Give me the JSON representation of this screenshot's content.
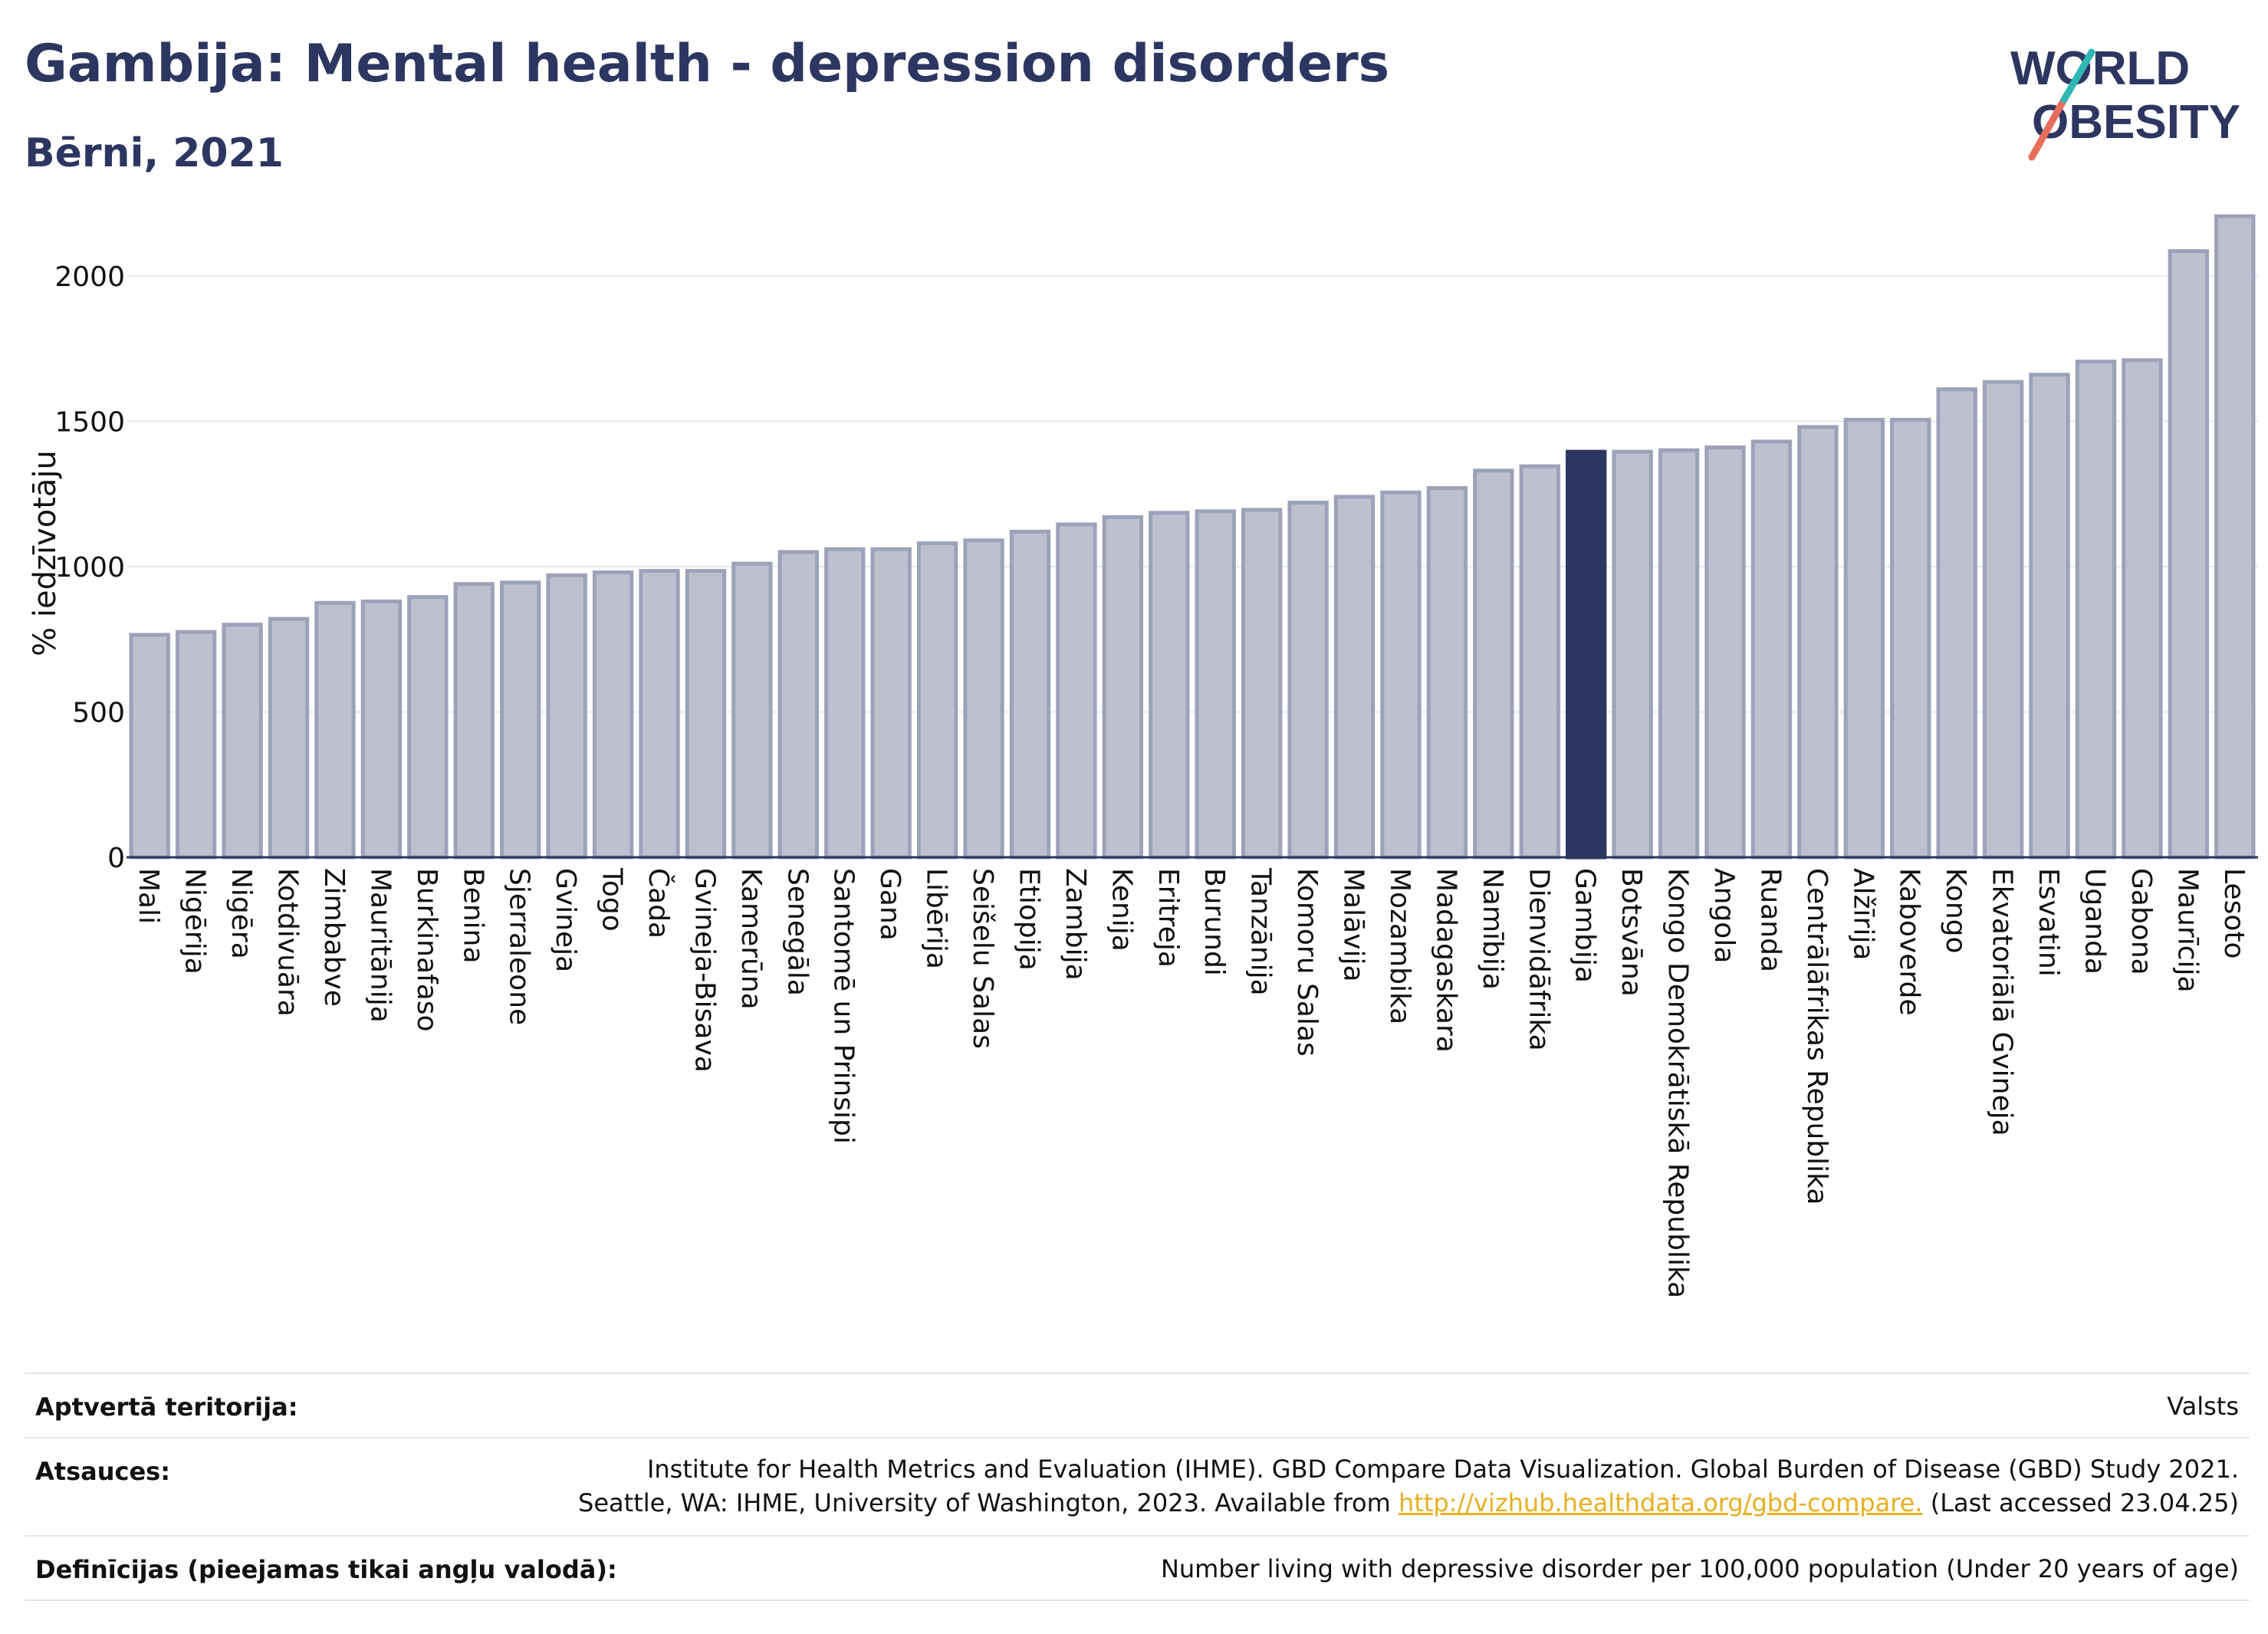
{
  "header": {
    "title": "Gambija: Mental health - depression disorders",
    "subtitle": "Bērni, 2021"
  },
  "logo": {
    "line1": "WORLD",
    "line2": "OBESITY"
  },
  "chart_data": {
    "type": "bar",
    "ylabel": "% iedzīvotāju",
    "ylim": [
      0,
      2250
    ],
    "yticks": [
      0,
      500,
      1000,
      1500,
      2000
    ],
    "grid": true,
    "highlight": "Gambija",
    "colors": {
      "bar": "#bdc1cf",
      "bar_edge": "#9da2b8",
      "highlight": "#2c3660",
      "grid": "#e6e8ec"
    },
    "categories": [
      "Mali",
      "Nigērija",
      "Nigēra",
      "Kotdivuāra",
      "Zimbabve",
      "Mauritānija",
      "Burkinafaso",
      "Benina",
      "Sjerraleone",
      "Gvineja",
      "Togo",
      "Čada",
      "Gvineja-Bisava",
      "Kamerūna",
      "Senegāla",
      "Santomē un Prinsipi",
      "Gana",
      "Libērija",
      "Seišelu Salas",
      "Etiopija",
      "Zambija",
      "Kenija",
      "Eritreja",
      "Burundi",
      "Tanzānija",
      "Komoru Salas",
      "Malāvija",
      "Mozambika",
      "Madagaskara",
      "Namībija",
      "Dienvidāfrika",
      "Gambija",
      "Botsvāna",
      "Kongo Demokrātiskā Republika",
      "Angola",
      "Ruanda",
      "Centrālāfrikas Republika",
      "Alžīrija",
      "Kaboverde",
      "Kongo",
      "Ekvatoriālā Gvineja",
      "Esvatini",
      "Uganda",
      "Gabona",
      "Maurīcija",
      "Lesoto"
    ],
    "values": [
      765,
      775,
      800,
      820,
      875,
      880,
      895,
      940,
      945,
      970,
      980,
      985,
      985,
      1010,
      1050,
      1060,
      1060,
      1080,
      1090,
      1120,
      1145,
      1170,
      1185,
      1190,
      1195,
      1220,
      1240,
      1255,
      1270,
      1330,
      1345,
      1395,
      1395,
      1400,
      1410,
      1430,
      1480,
      1505,
      1505,
      1610,
      1635,
      1660,
      1705,
      1710,
      2085,
      2205
    ]
  },
  "footer": {
    "territory_label": "Aptvertā teritorija:",
    "territory_value": "Valsts",
    "sources_label": "Atsauces:",
    "sources_line1": "Institute for Health Metrics and Evaluation (IHME). GBD Compare Data Visualization. Global Burden of Disease (GBD) Study 2021.",
    "sources_line2_pre": "Seattle, WA: IHME, University of Washington, 2023. Available from ",
    "sources_link": "http://vizhub.healthdata.org/gbd-compare.",
    "sources_line2_post": " (Last accessed 23.04.25)",
    "definitions_label": "Definīcijas (pieejamas tikai angļu valodā):",
    "definitions_value": "Number living with depressive disorder per 100,000 population (Under 20 years of age)"
  }
}
